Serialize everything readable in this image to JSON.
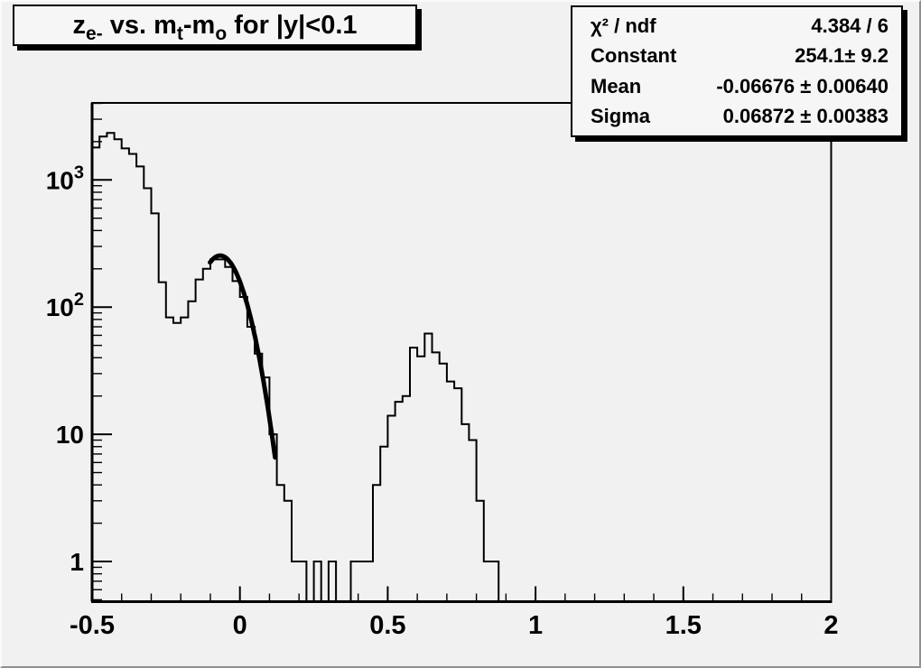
{
  "canvas": {
    "bg": "#f1f1f1",
    "box_bg": "#f6f6f6",
    "line_color": "#000000",
    "text_color": "#000000"
  },
  "title": {
    "text": "z_e- vs. m_t-m_o for |y|<0.1",
    "parts": [
      {
        "text": "z",
        "sub": false
      },
      {
        "text": "e-",
        "sub": true
      },
      {
        "text": " vs. m",
        "sub": false
      },
      {
        "text": "t",
        "sub": true
      },
      {
        "text": "-m",
        "sub": false
      },
      {
        "text": "o",
        "sub": true
      },
      {
        "text": " for |y|<0.1",
        "sub": false
      }
    ]
  },
  "stats": {
    "rows": [
      {
        "label": "χ² / ndf",
        "value": "4.384 / 6"
      },
      {
        "label": "Constant",
        "value": "254.1± 9.2"
      },
      {
        "label": "Mean",
        "value": "-0.06676 ± 0.00640"
      },
      {
        "label": "Sigma",
        "value": "0.06872 ± 0.00383"
      }
    ]
  },
  "chart_data": {
    "type": "bar",
    "subtype": "step-histogram",
    "title": "z_e- vs. m_t-m_o for |y|<0.1",
    "xlabel": "",
    "ylabel": "",
    "y_scale": "log",
    "x_range": [
      -0.5,
      2.0
    ],
    "y_range": [
      0.48,
      4030
    ],
    "grid": false,
    "legend": false,
    "bin_start": -0.5,
    "bin_width": 0.025,
    "counts": [
      1800,
      2190,
      2340,
      2085,
      1770,
      1600,
      1275,
      860,
      545,
      157,
      83,
      75,
      83,
      111,
      165,
      200,
      237,
      237,
      207,
      160,
      120,
      70,
      43,
      28,
      10,
      4,
      3,
      1,
      1,
      0,
      1,
      0,
      1,
      0,
      0,
      1,
      1,
      1,
      4,
      8,
      14,
      18,
      20,
      48,
      41,
      62,
      44,
      36,
      26,
      23,
      12,
      9,
      3,
      1,
      1,
      0,
      0,
      0,
      0,
      0,
      0,
      0,
      0,
      0,
      0,
      0,
      0,
      0,
      0,
      0,
      0,
      0,
      0,
      0,
      0,
      0,
      0,
      0,
      0,
      0,
      0,
      0,
      0,
      0,
      0,
      0,
      0,
      0,
      0,
      0,
      0,
      0,
      0,
      0,
      0,
      0,
      0,
      0,
      0,
      0
    ],
    "x_ticks": {
      "major": [
        -0.5,
        0,
        0.5,
        1,
        1.5,
        2
      ],
      "labels": [
        "-0.5",
        "0",
        "0.5",
        "1",
        "1.5",
        "2"
      ],
      "minor_step": 0.1
    },
    "y_ticks": {
      "major": [
        1,
        10,
        100,
        1000
      ],
      "labels": [
        {
          "base": "1",
          "exp": ""
        },
        {
          "base": "10",
          "exp": ""
        },
        {
          "base": "10",
          "exp": "2"
        },
        {
          "base": "10",
          "exp": "3"
        }
      ]
    },
    "fit": {
      "model": "gaussian",
      "chi2_ndf": "4.384 / 6",
      "constant": 254.1,
      "constant_err": 9.2,
      "mean": -0.06676,
      "mean_err": 0.0064,
      "sigma": 0.06872,
      "sigma_err": 0.00383,
      "draw_range": [
        -0.101,
        0.12
      ]
    }
  }
}
